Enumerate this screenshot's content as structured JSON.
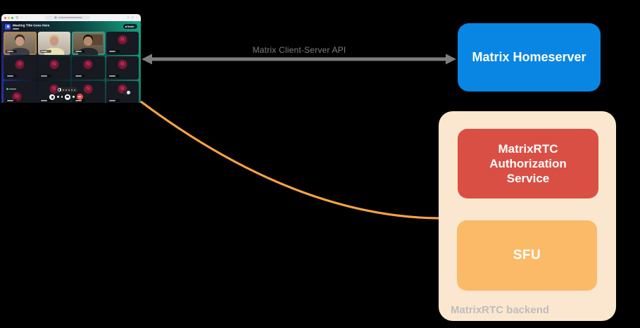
{
  "diagram": {
    "background_color": "#000000",
    "client_server_arrow": {
      "label": "Matrix Client-Server API",
      "color": "#7D7D7D",
      "label_color": "#7E7E7E"
    },
    "homeserver_box": {
      "label": "Matrix Homeserver",
      "bg": "#0986E3",
      "text_color": "#FFFFFF"
    },
    "backend_group": {
      "label": "MatrixRTC backend",
      "bg": "#FBE7CF",
      "label_color": "#BDBDBD",
      "auth_box": {
        "label": "MatrixRTC Authorization Service",
        "bg": "#DA4F44",
        "text_color": "#FFFFFF"
      },
      "sfu_box": {
        "label": "SFU",
        "bg": "#FBBA68",
        "text_color": "#FFFFFF"
      }
    },
    "sfu_curve": {
      "color": "#F6A343"
    }
  },
  "call_window": {
    "browser_chrome": {
      "traffic_lights": [
        "#FF5F57",
        "#FEBC2E",
        "#28C840"
      ],
      "back_glyph": "‹",
      "forward_glyph": "›",
      "sidebar_glyph": "▤",
      "shield_glyph": "◉",
      "download_glyph": "⇩",
      "profile_glyph": "◻",
      "menu_glyph": "⋮"
    },
    "header": {
      "title": "Meeting Title Goes Here",
      "invite_label": "Invite",
      "logo_color": "#3F5BDF"
    },
    "grid": {
      "tiles": [
        {
          "type": "video",
          "variant": "p1",
          "ring": "#C8822F"
        },
        {
          "type": "video",
          "variant": "p2",
          "ring": ""
        },
        {
          "type": "video",
          "variant": "p3",
          "ring": "#2EA890"
        },
        {
          "type": "avatar"
        },
        {
          "type": "avatar"
        },
        {
          "type": "avatar"
        },
        {
          "type": "avatar"
        },
        {
          "type": "avatar"
        },
        {
          "type": "avatar",
          "presence": true
        },
        {
          "type": "avatar"
        },
        {
          "type": "avatar"
        },
        {
          "type": "avatar",
          "widget": true
        }
      ]
    },
    "avatar": {
      "letter": "N",
      "circle_color": "#701531",
      "letter_color": "#D23455"
    },
    "controls": {
      "page_indicator_dots": 5,
      "dot_color": "#D9A43C",
      "end_call_color": "#E2504A"
    },
    "presence_dot_color": "#2BC98E"
  }
}
